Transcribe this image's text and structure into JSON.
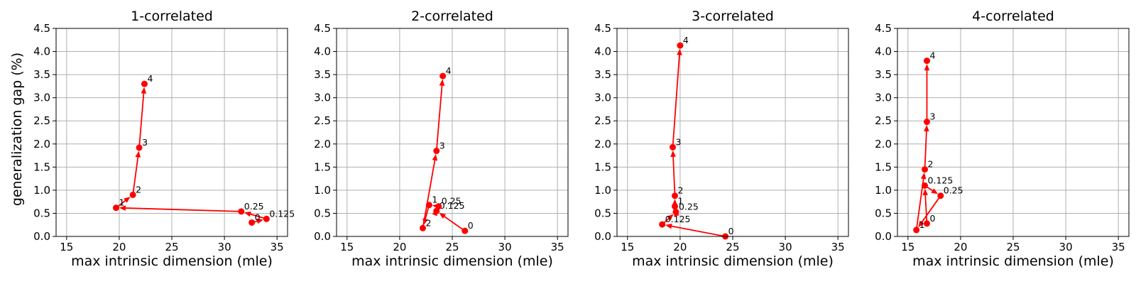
{
  "figure": {
    "ylabel": "generalization gap (%)",
    "xlabel": "max intrinsic dimension (mle)"
  },
  "chart_data": [
    {
      "type": "line",
      "title": "1-correlated",
      "xlabel": "max intrinsic dimension (mle)",
      "ylabel": "generalization gap (%)",
      "xlim": [
        14,
        36
      ],
      "ylim": [
        0,
        4.5
      ],
      "xticks": [
        15,
        20,
        25,
        30,
        35
      ],
      "yticks": [
        0.0,
        0.5,
        1.0,
        1.5,
        2.0,
        2.5,
        3.0,
        3.5,
        4.0,
        4.5
      ],
      "grid": true,
      "color": "#ff0000",
      "points": [
        {
          "label": "0",
          "x": 32.6,
          "y": 0.3
        },
        {
          "label": "0.125",
          "x": 34.0,
          "y": 0.38
        },
        {
          "label": "0.25",
          "x": 31.6,
          "y": 0.54
        },
        {
          "label": "1",
          "x": 19.7,
          "y": 0.62
        },
        {
          "label": "2",
          "x": 21.3,
          "y": 0.9
        },
        {
          "label": "3",
          "x": 21.9,
          "y": 1.92
        },
        {
          "label": "4",
          "x": 22.4,
          "y": 3.3
        }
      ]
    },
    {
      "type": "line",
      "title": "2-correlated",
      "xlabel": "max intrinsic dimension (mle)",
      "ylabel": "",
      "xlim": [
        14,
        36
      ],
      "ylim": [
        0,
        4.5
      ],
      "xticks": [
        15,
        20,
        25,
        30,
        35
      ],
      "yticks": [
        0.0,
        0.5,
        1.0,
        1.5,
        2.0,
        2.5,
        3.0,
        3.5,
        4.0,
        4.5
      ],
      "grid": true,
      "color": "#ff0000",
      "points": [
        {
          "label": "0",
          "x": 26.2,
          "y": 0.12
        },
        {
          "label": "0.125",
          "x": 23.5,
          "y": 0.55
        },
        {
          "label": "0.25",
          "x": 23.7,
          "y": 0.65
        },
        {
          "label": "1",
          "x": 22.8,
          "y": 0.68
        },
        {
          "label": "2",
          "x": 22.2,
          "y": 0.18
        },
        {
          "label": "3",
          "x": 23.5,
          "y": 1.85
        },
        {
          "label": "4",
          "x": 24.1,
          "y": 3.47
        }
      ]
    },
    {
      "type": "line",
      "title": "3-correlated",
      "xlabel": "max intrinsic dimension (mle)",
      "ylabel": "",
      "xlim": [
        14,
        36
      ],
      "ylim": [
        0,
        4.5
      ],
      "xticks": [
        15,
        20,
        25,
        30,
        35
      ],
      "yticks": [
        0.0,
        0.5,
        1.0,
        1.5,
        2.0,
        2.5,
        3.0,
        3.5,
        4.0,
        4.5
      ],
      "grid": true,
      "color": "#ff0000",
      "points": [
        {
          "label": "0",
          "x": 24.3,
          "y": 0.0
        },
        {
          "label": "0.125",
          "x": 18.3,
          "y": 0.26
        },
        {
          "label": "0.25",
          "x": 19.6,
          "y": 0.53
        },
        {
          "label": "1",
          "x": 19.5,
          "y": 0.65
        },
        {
          "label": "2",
          "x": 19.5,
          "y": 0.88
        },
        {
          "label": "3",
          "x": 19.3,
          "y": 1.93
        },
        {
          "label": "4",
          "x": 20.0,
          "y": 4.13
        }
      ]
    },
    {
      "type": "line",
      "title": "4-correlated",
      "xlabel": "max intrinsic dimension (mle)",
      "ylabel": "",
      "xlim": [
        14,
        36
      ],
      "ylim": [
        0,
        4.5
      ],
      "xticks": [
        15,
        20,
        25,
        30,
        35
      ],
      "yticks": [
        0.0,
        0.5,
        1.0,
        1.5,
        2.0,
        2.5,
        3.0,
        3.5,
        4.0,
        4.5
      ],
      "grid": true,
      "color": "#ff0000",
      "points": [
        {
          "label": "0",
          "x": 16.8,
          "y": 0.28
        },
        {
          "label": "0.125",
          "x": 16.6,
          "y": 1.1
        },
        {
          "label": "0.25",
          "x": 18.1,
          "y": 0.88
        },
        {
          "label": "1",
          "x": 15.8,
          "y": 0.14
        },
        {
          "label": "2",
          "x": 16.6,
          "y": 1.45
        },
        {
          "label": "3",
          "x": 16.8,
          "y": 2.48
        },
        {
          "label": "4",
          "x": 16.8,
          "y": 3.8
        }
      ]
    }
  ]
}
